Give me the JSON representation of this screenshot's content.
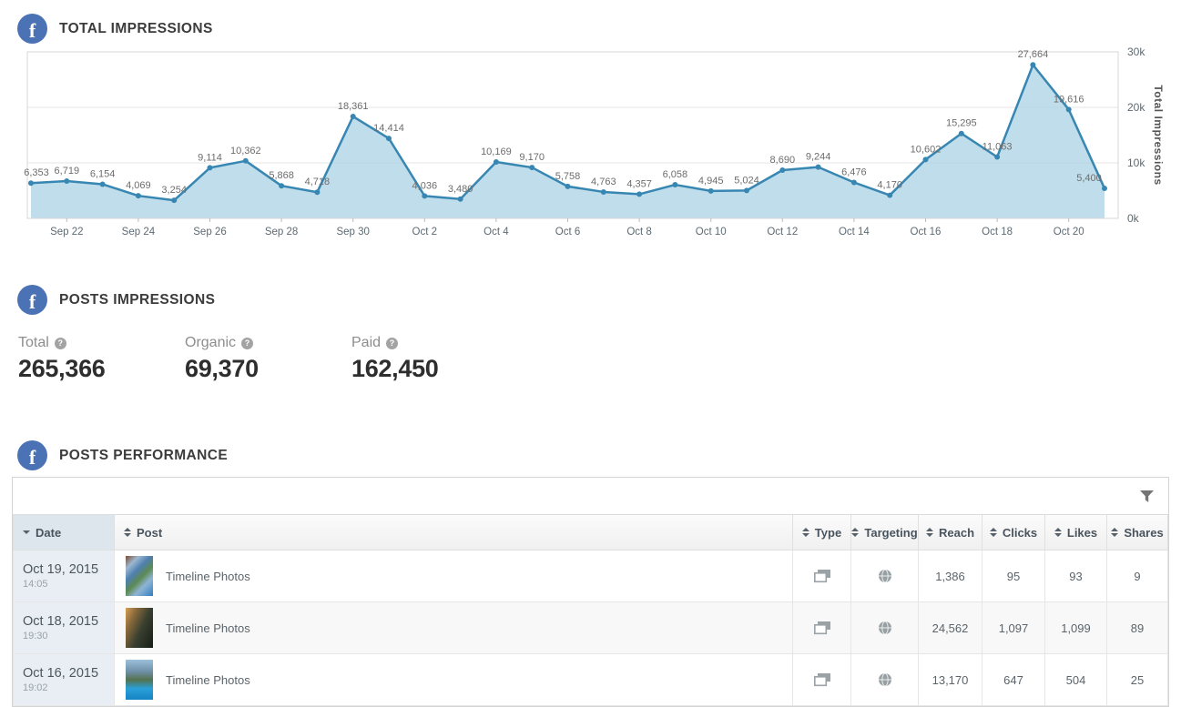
{
  "brand": {
    "facebook_color": "#4a72b5"
  },
  "sections": {
    "total_impressions": {
      "title": "TOTAL IMPRESSIONS"
    },
    "posts_impressions": {
      "title": "POSTS IMPRESSIONS"
    },
    "posts_performance": {
      "title": "POSTS PERFORMANCE"
    }
  },
  "chart_data": {
    "type": "area",
    "series_name": "Total Impressions",
    "values": [
      6353,
      6719,
      6154,
      4069,
      3254,
      9114,
      10362,
      5868,
      4718,
      18361,
      14414,
      4036,
      3480,
      10169,
      9170,
      5758,
      4763,
      4357,
      6058,
      4945,
      5024,
      8690,
      9244,
      6476,
      4170,
      10602,
      15295,
      11063,
      27664,
      19616,
      5400
    ],
    "x_tick_labels": [
      "Sep 22",
      "Sep 24",
      "Sep 26",
      "Sep 28",
      "Sep 30",
      "Oct 2",
      "Oct 4",
      "Oct 6",
      "Oct 8",
      "Oct 10",
      "Oct 12",
      "Oct 14",
      "Oct 16",
      "Oct 18",
      "Oct 20"
    ],
    "x_tick_indices": [
      1,
      3,
      5,
      7,
      9,
      11,
      13,
      15,
      17,
      19,
      21,
      23,
      25,
      27,
      29
    ],
    "y_ticks": [
      {
        "value": 0,
        "label": "0k"
      },
      {
        "value": 10000,
        "label": "10k"
      },
      {
        "value": 20000,
        "label": "20k"
      },
      {
        "value": 30000,
        "label": "30k"
      }
    ],
    "ylim": [
      0,
      30000
    ],
    "ylabel": "Total Impressions",
    "grid": true,
    "legend": "none",
    "line_color": "#3787b2",
    "fill_color": "rgba(176,212,230,0.8)"
  },
  "stats": [
    {
      "label": "Total",
      "value": "265,366"
    },
    {
      "label": "Organic",
      "value": "69,370"
    },
    {
      "label": "Paid",
      "value": "162,450"
    }
  ],
  "table": {
    "columns": [
      {
        "label": "Date",
        "sort": "desc"
      },
      {
        "label": "Post",
        "sort": "both"
      },
      {
        "label": "Type",
        "sort": "both"
      },
      {
        "label": "Targeting",
        "sort": "both"
      },
      {
        "label": "Reach",
        "sort": "both"
      },
      {
        "label": "Clicks",
        "sort": "both"
      },
      {
        "label": "Likes",
        "sort": "both"
      },
      {
        "label": "Shares",
        "sort": "both"
      }
    ],
    "rows": [
      {
        "date": "Oct 19, 2015",
        "time": "14:05",
        "post": "Timeline Photos",
        "type": "photo",
        "targeting": "public",
        "reach": "1,386",
        "clicks": "95",
        "likes": "93",
        "shares": "9"
      },
      {
        "date": "Oct 18, 2015",
        "time": "19:30",
        "post": "Timeline Photos",
        "type": "photo",
        "targeting": "public",
        "reach": "24,562",
        "clicks": "1,097",
        "likes": "1,099",
        "shares": "89"
      },
      {
        "date": "Oct 16, 2015",
        "time": "19:02",
        "post": "Timeline Photos",
        "type": "photo",
        "targeting": "public",
        "reach": "13,170",
        "clicks": "647",
        "likes": "504",
        "shares": "25"
      }
    ]
  }
}
